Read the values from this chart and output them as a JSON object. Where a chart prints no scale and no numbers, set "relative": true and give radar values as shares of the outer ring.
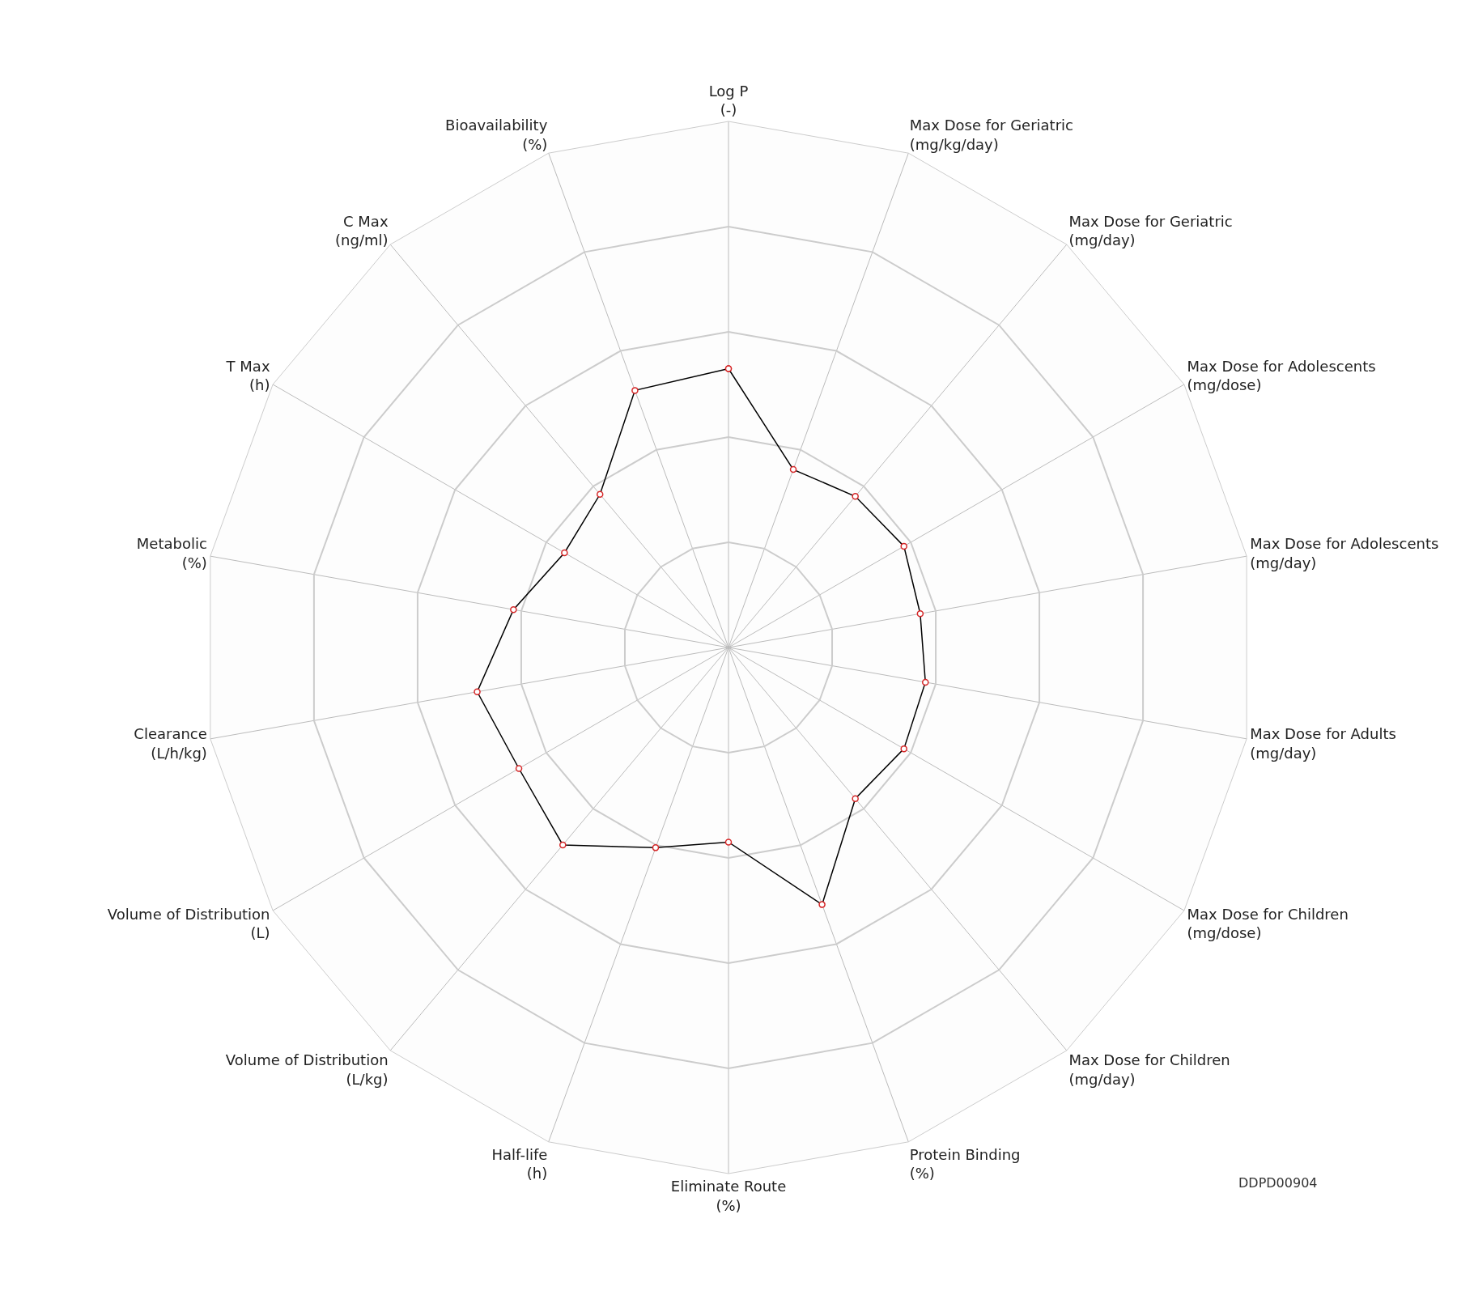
{
  "chart_data": {
    "type": "radar",
    "relative": true,
    "categories": [
      "Log P\n(-)",
      "Max Dose for Geriatric\n(mg/kg/day)",
      "Max Dose for Geriatric\n(mg/day)",
      "Max Dose for Adolescents\n(mg/dose)",
      "Max Dose for Adolescents\n(mg/day)",
      "Max Dose for Adults\n(mg/day)",
      "Max Dose for Children\n(mg/dose)",
      "Max Dose for Children\n(mg/day)",
      "Protein Binding\n(%)",
      "Eliminate Route\n(%)",
      "Half-life\n(h)",
      "Volume of Distribution\n(L/kg)",
      "Volume of Distribution\n(L)",
      "Clearance\n(L/h/kg)",
      "Metabolic\n(%)",
      "T Max\n(h)",
      "C Max\n(ng/ml)",
      "Bioavailability\n(%)"
    ],
    "series": [
      {
        "color": "#000000",
        "values": [
          0.53,
          0.36,
          0.375,
          0.385,
          0.37,
          0.38,
          0.385,
          0.375,
          0.52,
          0.37,
          0.405,
          0.49,
          0.46,
          0.485,
          0.415,
          0.36,
          0.38,
          0.52
        ]
      }
    ],
    "marker": "circle",
    "grid": true,
    "annotations": [
      "DDPD00904"
    ]
  }
}
